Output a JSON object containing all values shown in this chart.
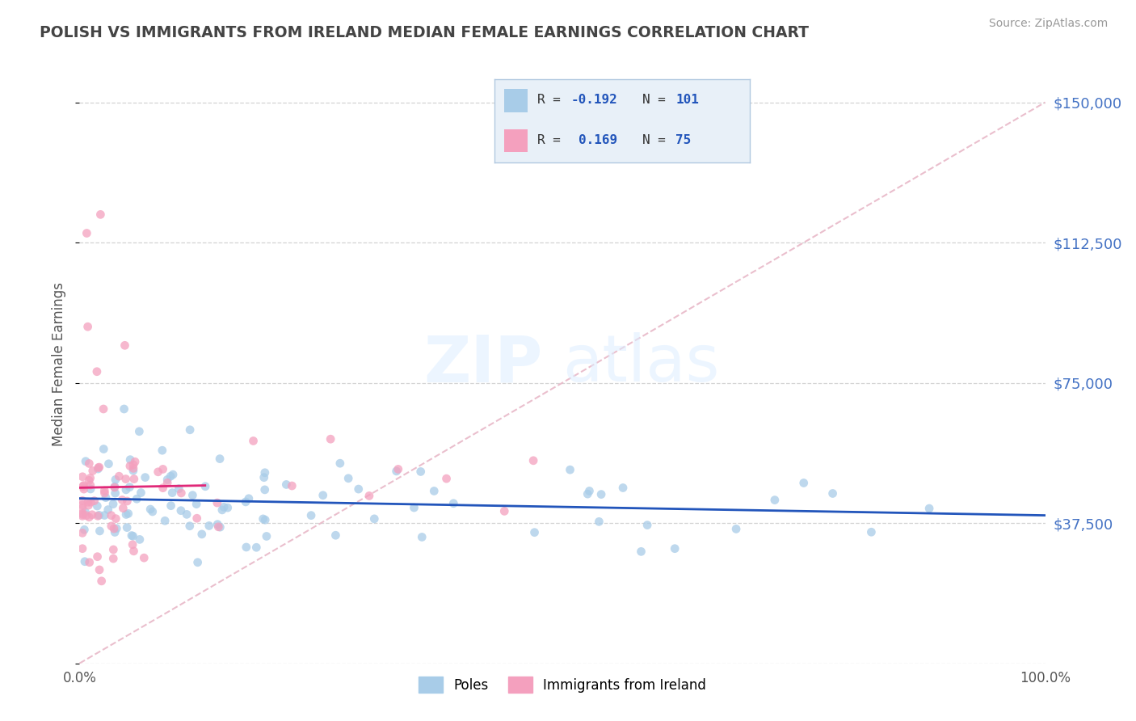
{
  "title": "POLISH VS IMMIGRANTS FROM IRELAND MEDIAN FEMALE EARNINGS CORRELATION CHART",
  "source": "Source: ZipAtlas.com",
  "ylabel": "Median Female Earnings",
  "xlim": [
    0.0,
    1.0
  ],
  "ylim": [
    0,
    160000
  ],
  "yticks": [
    0,
    37500,
    75000,
    112500,
    150000
  ],
  "ytick_labels": [
    "",
    "$37,500",
    "$75,000",
    "$112,500",
    "$150,000"
  ],
  "background_color": "#ffffff",
  "grid_color": "#c8c8c8",
  "title_color": "#444444",
  "right_tick_color": "#4472c4",
  "watermark_zip": "ZIP",
  "watermark_atlas": "atlas",
  "legend": {
    "poles_R": "-0.192",
    "poles_N": "101",
    "ireland_R": "0.169",
    "ireland_N": "75"
  },
  "poles_color": "#a8cce8",
  "ireland_color": "#f4a0be",
  "trend_poles_color": "#2255bb",
  "trend_ireland_color": "#e02878",
  "diag_color": "#e8b8c8",
  "legend_box_color": "#e8f0f8",
  "legend_border_color": "#b0c8e0"
}
